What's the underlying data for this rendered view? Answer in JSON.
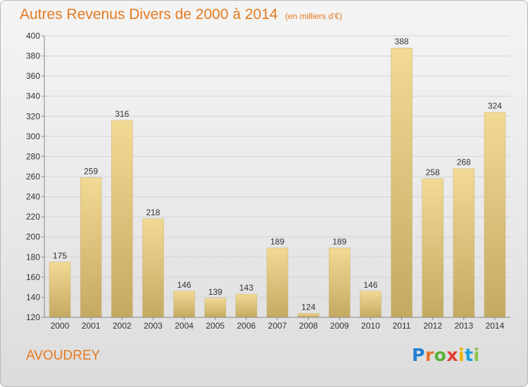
{
  "title": "Autres Revenus Divers de 2000 à 2014",
  "subtitle": "(en milliers d'€)",
  "commune": "AVOUDREY",
  "logo": {
    "letters": [
      {
        "char": "P",
        "color": "#1f7fd4"
      },
      {
        "char": "r",
        "color": "#e8742a"
      },
      {
        "char": "o",
        "color": "#58b034"
      },
      {
        "char": "x",
        "color": "#e63a2e"
      },
      {
        "char": "i",
        "color": "#f3b400"
      },
      {
        "char": "t",
        "color": "#1f9fe0"
      },
      {
        "char": "i",
        "color": "#8bc34a"
      }
    ]
  },
  "colors": {
    "title": "#e57a1f",
    "bar_top": "#f2d994",
    "bar_bottom": "#c4a962",
    "grid": "#d4d4d4"
  },
  "chart_data": {
    "type": "bar",
    "categories": [
      "2000",
      "2001",
      "2002",
      "2003",
      "2004",
      "2005",
      "2006",
      "2007",
      "2008",
      "2009",
      "2010",
      "2011",
      "2012",
      "2013",
      "2014"
    ],
    "values": [
      175,
      259,
      316,
      218,
      146,
      139,
      143,
      189,
      124,
      189,
      146,
      388,
      258,
      268,
      324
    ],
    "ylim": [
      120,
      400
    ],
    "yticks": [
      120,
      140,
      160,
      180,
      200,
      220,
      240,
      260,
      280,
      300,
      320,
      340,
      360,
      380,
      400
    ],
    "grid": true,
    "data_labels": true
  }
}
